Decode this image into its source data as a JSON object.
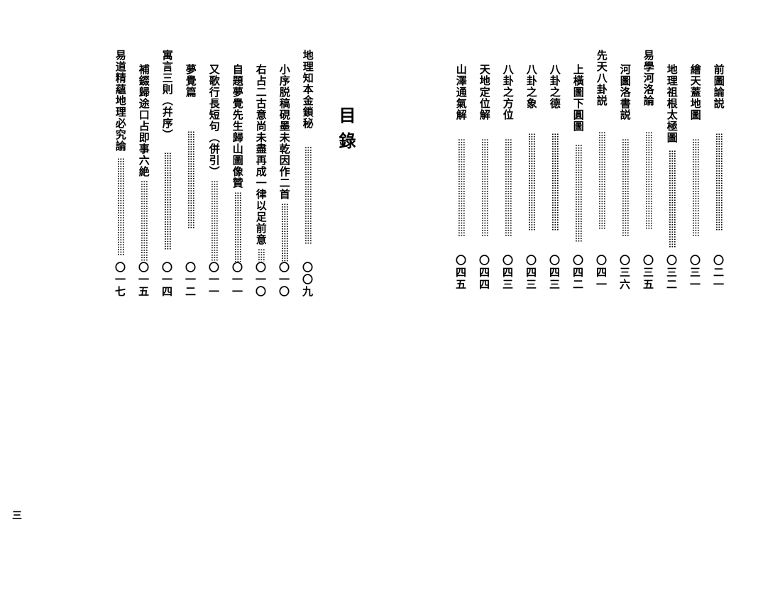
{
  "heading": "目錄",
  "footer_page": "三",
  "leader_dots": "⁝⁝⁝⁝⁝⁝⁝⁝⁝⁝⁝⁝⁝⁝⁝⁝⁝⁝⁝⁝⁝⁝⁝⁝⁝⁝⁝⁝⁝⁝⁝⁝⁝⁝⁝⁝⁝⁝⁝⁝",
  "left": {
    "entries": [
      {
        "title": "地理知本金鎖秘",
        "page": "〇〇九",
        "indent": false
      },
      {
        "title": "小序脱稿硯墨未乾因作二首",
        "page": "〇一〇",
        "indent": true
      },
      {
        "title": "右占二古意尚未盡再成一律以足前意",
        "page": "〇一〇",
        "indent": true
      },
      {
        "title": "自題夢覺先生歸山圖像贊",
        "page": "〇一一",
        "indent": true
      },
      {
        "title": "又歌行長短句（併引）",
        "page": "〇一一",
        "indent": true
      },
      {
        "title": "夢覺篇",
        "page": "〇一二",
        "indent": true
      },
      {
        "title": "寓言三則（幷序）",
        "page": "〇一四",
        "indent": false
      },
      {
        "title": "補錣歸途口占即事六絶",
        "page": "〇一五",
        "indent": true
      },
      {
        "title": "易道精蘊地理必究論",
        "page": "〇一七",
        "indent": false
      }
    ]
  },
  "right": {
    "entries": [
      {
        "title": "前圖論説",
        "page": "〇二一",
        "indent": true
      },
      {
        "title": "繪天蓋地圖",
        "page": "〇三一",
        "indent": true
      },
      {
        "title": "地理祖根太極圖",
        "page": "〇三二",
        "indent": true
      },
      {
        "title": "易學河洛論",
        "page": "〇三五",
        "indent": false
      },
      {
        "title": "河圖洛書説",
        "page": "〇三六",
        "indent": true
      },
      {
        "title": "先天八卦説",
        "page": "〇四一",
        "indent": false
      },
      {
        "title": "上橫圖下圓圖",
        "page": "〇四二",
        "indent": true
      },
      {
        "title": "八卦之德",
        "page": "〇四三",
        "indent": true
      },
      {
        "title": "八卦之象",
        "page": "〇四三",
        "indent": true
      },
      {
        "title": "八卦之方位",
        "page": "〇四三",
        "indent": true
      },
      {
        "title": "天地定位解",
        "page": "〇四四",
        "indent": true
      },
      {
        "title": "山澤通氣解",
        "page": "〇四五",
        "indent": true
      }
    ]
  }
}
